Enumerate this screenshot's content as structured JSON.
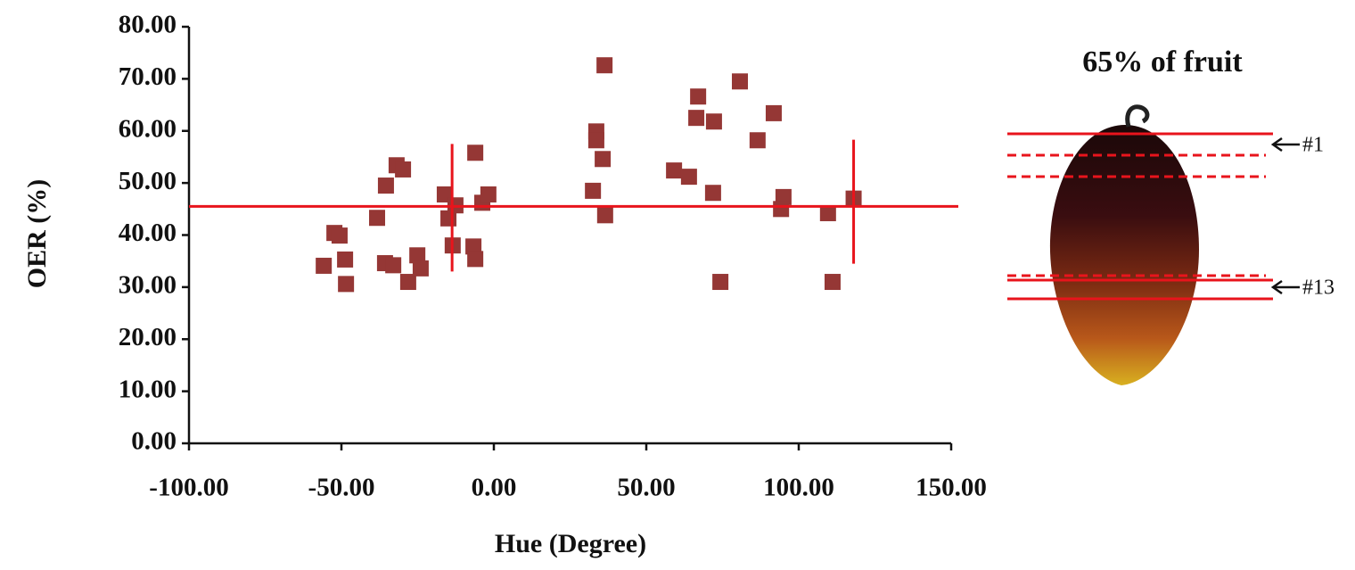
{
  "chart_data": {
    "type": "scatter",
    "xlabel": "Hue (Degree)",
    "ylabel": "OER (%)",
    "xlim": [
      -100,
      150
    ],
    "ylim": [
      0,
      80
    ],
    "xticks": [
      {
        "value": -100,
        "label": "-100.00"
      },
      {
        "value": -50,
        "label": "-50.00"
      },
      {
        "value": 0,
        "label": "0.00"
      },
      {
        "value": 50,
        "label": "50.00"
      },
      {
        "value": 100,
        "label": "100.00"
      },
      {
        "value": 150,
        "label": "150.00"
      }
    ],
    "yticks": [
      {
        "value": 0,
        "label": "0.00"
      },
      {
        "value": 10,
        "label": "10.00"
      },
      {
        "value": 20,
        "label": "20.00"
      },
      {
        "value": 30,
        "label": "30.00"
      },
      {
        "value": 40,
        "label": "40.00"
      },
      {
        "value": 50,
        "label": "50.00"
      },
      {
        "value": 60,
        "label": "60.00"
      },
      {
        "value": 70,
        "label": "70.00"
      },
      {
        "value": 80,
        "label": "80.00"
      }
    ],
    "grid": false,
    "series": [
      {
        "color": "#953735",
        "x": [
          -55.8,
          -52.3,
          -50.6,
          -48.8,
          -48.5,
          -35.4,
          -38.3,
          -35.7,
          -33.0,
          -31.9,
          -29.8,
          -28.1,
          -25.1,
          -24.0,
          -16.1,
          -14.9,
          -12.6,
          -13.5,
          -6.1,
          -6.7,
          -6.1,
          -3.8,
          -1.8,
          32.5,
          36.3,
          35.7,
          33.6,
          33.6,
          36.5,
          59.1,
          64.0,
          67.0,
          66.4,
          72.2,
          71.9,
          74.3,
          80.7,
          86.5,
          91.8,
          95.0,
          94.2,
          109.6,
          111.1,
          118.0
        ],
        "values": [
          34.1,
          40.4,
          39.9,
          35.3,
          30.6,
          49.5,
          43.3,
          34.6,
          34.2,
          53.4,
          52.6,
          31.0,
          36.1,
          33.6,
          47.8,
          43.2,
          45.7,
          38.0,
          55.8,
          37.8,
          35.4,
          46.2,
          47.8,
          48.5,
          72.6,
          54.6,
          59.9,
          58.2,
          43.8,
          52.4,
          51.2,
          66.6,
          62.5,
          61.8,
          48.1,
          31.0,
          69.5,
          58.2,
          63.4,
          47.3,
          45.0,
          44.2,
          31.0,
          47.0
        ]
      }
    ],
    "reference_lines": {
      "color": "#e8141c",
      "horizontal_y": 45.5,
      "vertical": [
        {
          "x": -13.7,
          "y_range": [
            33.0,
            57.5
          ]
        },
        {
          "x": 118.0,
          "y_range": [
            34.5,
            58.3
          ]
        }
      ]
    },
    "fruit_figure": {
      "title": "65% of fruit",
      "labels": [
        "#1",
        "#13"
      ]
    }
  }
}
